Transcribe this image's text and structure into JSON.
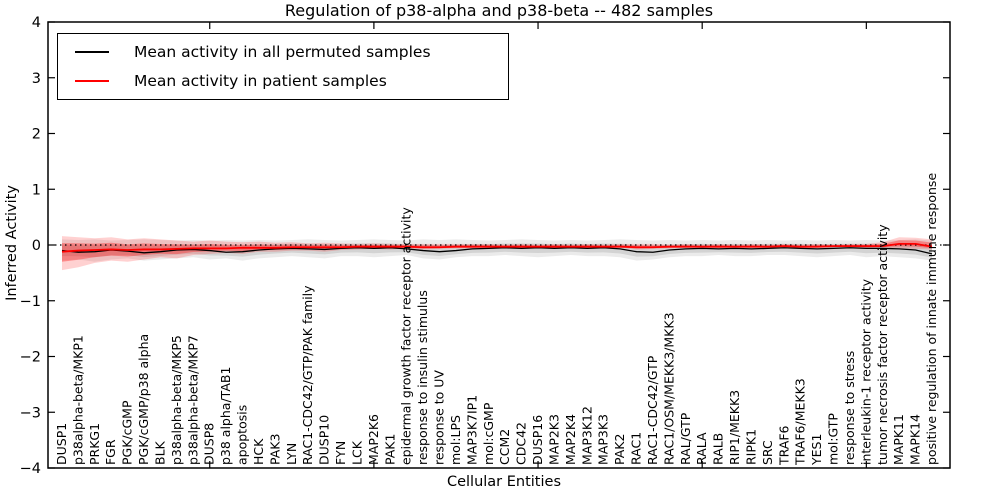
{
  "title": "Regulation of p38-alpha and p38-beta -- 482 samples",
  "legend": {
    "items": [
      {
        "label": "Mean activity in all permuted samples",
        "color": "#000000"
      },
      {
        "label": "Mean activity in patient samples",
        "color": "#ff0000"
      }
    ]
  },
  "chart_data": {
    "type": "line",
    "title": "Regulation of p38-alpha and p38-beta -- 482 samples",
    "xlabel": "Cellular Entities",
    "ylabel": "Inferred Activity",
    "ylim": [
      -4,
      4
    ],
    "yticks": [
      4,
      3,
      2,
      1,
      0,
      -1,
      -2,
      -3,
      -4
    ],
    "ytick_labels": [
      "4",
      "3",
      "2",
      "1",
      "0",
      "−1",
      "−2",
      "−3",
      "−4"
    ],
    "grid": false,
    "legend_position": "upper left",
    "zero_line": 0,
    "categories": [
      "DUSP1",
      "p38alpha-beta/MKP1",
      "PRKG1",
      "FGR",
      "PGK/cGMP",
      "PGK/cGMP/p38 alpha",
      "BLK",
      "p38alpha-beta/MKP5",
      "p38alpha-beta/MKP7",
      "DUSP8",
      "p38 alpha/TAB1",
      "apoptosis",
      "HCK",
      "PAK3",
      "LYN",
      "RAC1-CDC42/GTP/PAK family",
      "DUSP10",
      "FYN",
      "LCK",
      "MAP2K6",
      "PAK1",
      "epidermal growth factor receptor activity",
      "response to insulin stimulus",
      "response to UV",
      "mol:LPS",
      "MAP3K7IP1",
      "mol:cGMP",
      "CCM2",
      "CDC42",
      "DUSP16",
      "MAP2K3",
      "MAP2K4",
      "MAP3K12",
      "MAP3K3",
      "PAK2",
      "RAC1",
      "RAC1-CDC42/GTP",
      "RAC1/OSM/MEKK3/MKK3",
      "RAL/GTP",
      "RALA",
      "RALB",
      "RIP1/MEKK3",
      "RIPK1",
      "SRC",
      "TRAF6",
      "TRAF6/MEKK3",
      "YES1",
      "mol:GTP",
      "response to stress",
      "interleukin-1 receptor activity",
      "tumor necrosis factor receptor activity",
      "MAPK11",
      "MAPK14",
      "positive regulation of innate immune response"
    ],
    "series": [
      {
        "name": "Mean activity in all permuted samples",
        "color": "#000000",
        "values": [
          -0.1,
          -0.13,
          -0.12,
          -0.09,
          -0.11,
          -0.14,
          -0.12,
          -0.09,
          -0.08,
          -0.1,
          -0.13,
          -0.12,
          -0.09,
          -0.07,
          -0.06,
          -0.07,
          -0.08,
          -0.06,
          -0.05,
          -0.06,
          -0.05,
          -0.07,
          -0.1,
          -0.12,
          -0.1,
          -0.07,
          -0.06,
          -0.05,
          -0.06,
          -0.05,
          -0.06,
          -0.05,
          -0.06,
          -0.05,
          -0.07,
          -0.12,
          -0.13,
          -0.09,
          -0.07,
          -0.06,
          -0.07,
          -0.06,
          -0.07,
          -0.06,
          -0.05,
          -0.06,
          -0.07,
          -0.06,
          -0.05,
          -0.06,
          -0.06,
          -0.07,
          -0.09,
          -0.16
        ]
      },
      {
        "name": "Mean activity in patient samples",
        "color": "#ff0000",
        "values": [
          -0.12,
          -0.1,
          -0.09,
          -0.08,
          -0.09,
          -0.08,
          -0.08,
          -0.07,
          -0.06,
          -0.06,
          -0.06,
          -0.05,
          -0.05,
          -0.05,
          -0.04,
          -0.04,
          -0.04,
          -0.04,
          -0.03,
          -0.03,
          -0.03,
          -0.03,
          -0.04,
          -0.04,
          -0.03,
          -0.03,
          -0.03,
          -0.03,
          -0.03,
          -0.03,
          -0.03,
          -0.03,
          -0.03,
          -0.03,
          -0.03,
          -0.04,
          -0.04,
          -0.03,
          -0.03,
          -0.03,
          -0.03,
          -0.03,
          -0.03,
          -0.03,
          -0.02,
          -0.03,
          -0.03,
          -0.02,
          -0.02,
          -0.02,
          -0.02,
          0.02,
          0.02,
          -0.03
        ]
      }
    ],
    "bands": [
      {
        "name": "permuted-confidence-band",
        "series": 0,
        "color_outer": "rgba(0,0,0,0.08)",
        "color_inner": "rgba(0,0,0,0.10)",
        "hi": [
          0.1,
          0.09,
          0.1,
          0.08,
          0.09,
          0.1,
          0.09,
          0.08,
          0.09,
          0.08,
          0.09,
          0.08,
          0.09,
          0.08,
          0.09,
          0.1,
          0.09,
          0.08,
          0.09,
          0.1,
          0.09,
          0.08,
          0.1,
          0.09,
          0.1,
          0.09,
          0.08,
          0.09,
          0.1,
          0.09,
          0.08,
          0.09,
          0.08,
          0.09,
          0.1,
          0.09,
          0.08,
          0.09,
          0.08,
          0.09,
          0.08,
          0.09,
          0.08,
          0.09,
          0.08,
          0.09,
          0.08,
          0.09,
          0.08,
          0.09,
          0.08,
          0.09,
          0.1,
          0.08
        ],
        "lo": [
          -0.28,
          -0.26,
          -0.3,
          -0.26,
          -0.24,
          -0.28,
          -0.26,
          -0.24,
          -0.22,
          -0.26,
          -0.24,
          -0.28,
          -0.24,
          -0.22,
          -0.2,
          -0.22,
          -0.24,
          -0.2,
          -0.2,
          -0.22,
          -0.2,
          -0.18,
          -0.24,
          -0.26,
          -0.22,
          -0.2,
          -0.2,
          -0.18,
          -0.2,
          -0.22,
          -0.2,
          -0.18,
          -0.2,
          -0.2,
          -0.22,
          -0.28,
          -0.26,
          -0.22,
          -0.2,
          -0.2,
          -0.18,
          -0.2,
          -0.2,
          -0.18,
          -0.18,
          -0.2,
          -0.22,
          -0.2,
          -0.18,
          -0.22,
          -0.2,
          -0.22,
          -0.24,
          -0.28
        ]
      },
      {
        "name": "patient-confidence-band",
        "series": 1,
        "color_outer": "rgba(255,0,0,0.18)",
        "color_inner": "rgba(255,0,0,0.32)",
        "hi": [
          0.16,
          0.14,
          0.12,
          0.14,
          0.1,
          0.12,
          0.1,
          0.08,
          0.06,
          0.08,
          0.06,
          0.05,
          0.06,
          0.04,
          0.05,
          0.03,
          0.04,
          0.03,
          0.02,
          0.03,
          0.02,
          0.02,
          0.02,
          0.02,
          0.02,
          0.02,
          0.02,
          0.01,
          0.02,
          0.01,
          0.02,
          0.01,
          0.02,
          0.01,
          0.02,
          0.02,
          0.02,
          0.01,
          0.02,
          0.01,
          0.02,
          0.01,
          0.02,
          0.01,
          0.02,
          0.01,
          0.02,
          0.01,
          0.02,
          0.02,
          0.05,
          0.14,
          0.13,
          0.1
        ],
        "lo": [
          -0.45,
          -0.4,
          -0.32,
          -0.28,
          -0.3,
          -0.26,
          -0.22,
          -0.24,
          -0.18,
          -0.16,
          -0.14,
          -0.16,
          -0.12,
          -0.12,
          -0.1,
          -0.1,
          -0.12,
          -0.09,
          -0.08,
          -0.07,
          -0.08,
          -0.06,
          -0.08,
          -0.07,
          -0.06,
          -0.06,
          -0.05,
          -0.06,
          -0.05,
          -0.05,
          -0.06,
          -0.05,
          -0.05,
          -0.06,
          -0.05,
          -0.08,
          -0.07,
          -0.06,
          -0.05,
          -0.05,
          -0.06,
          -0.05,
          -0.05,
          -0.05,
          -0.05,
          -0.06,
          -0.05,
          -0.05,
          -0.05,
          -0.06,
          -0.05,
          -0.06,
          -0.07,
          -0.08
        ]
      }
    ]
  }
}
